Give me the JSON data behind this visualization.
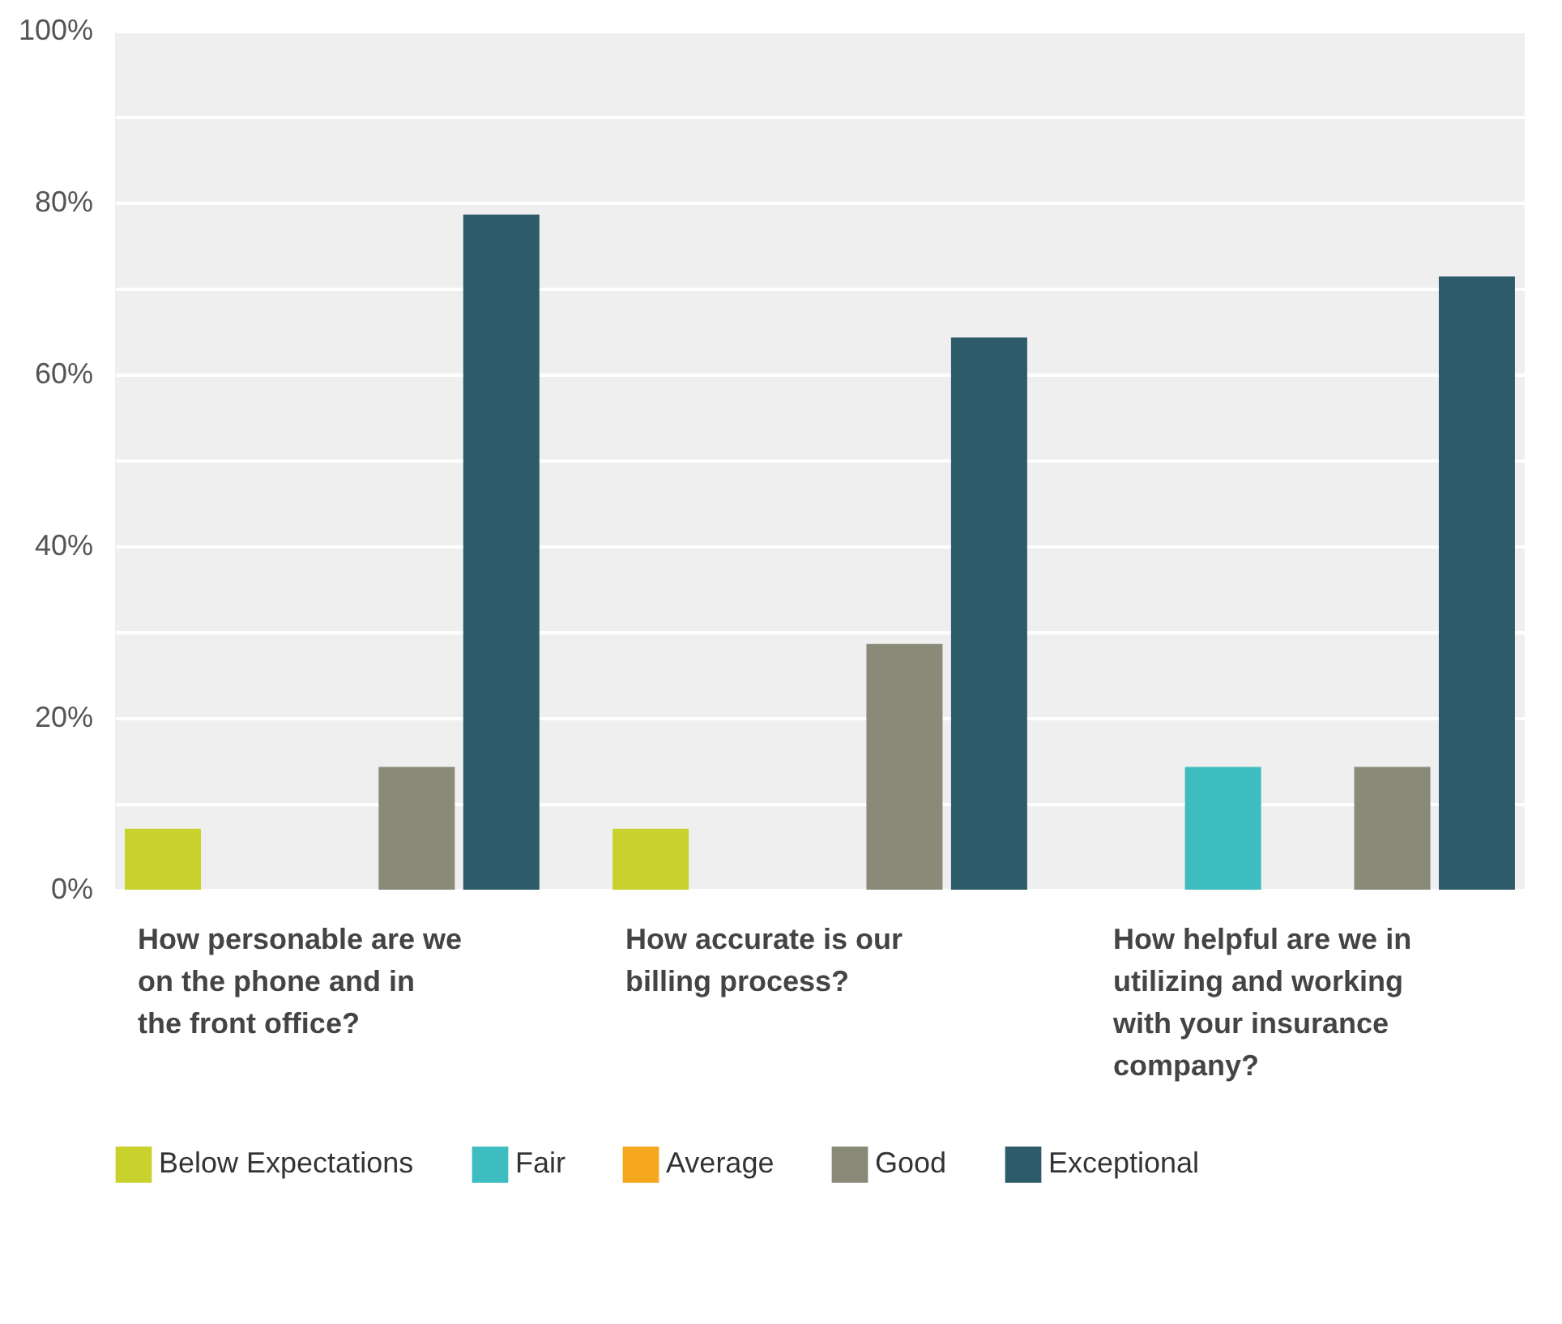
{
  "chart_data": {
    "type": "bar",
    "categories": [
      "How personable are we on the phone and in the front office?",
      "How accurate is our billing process?",
      "How helpful are we in utilizing and working with your insurance company?"
    ],
    "series": [
      {
        "name": "Below Expectations",
        "color": "#c9d22c",
        "values": [
          7.1,
          7.1,
          0
        ]
      },
      {
        "name": "Fair",
        "color": "#3dbdbf",
        "values": [
          0,
          0,
          14.3
        ]
      },
      {
        "name": "Average",
        "color": "#f5a81e",
        "values": [
          0,
          0,
          0
        ]
      },
      {
        "name": "Good",
        "color": "#8a8a78",
        "values": [
          14.3,
          28.6,
          14.3
        ]
      },
      {
        "name": "Exceptional",
        "color": "#2e5b6a",
        "values": [
          78.6,
          64.3,
          71.4
        ]
      }
    ],
    "ylim": [
      0,
      100
    ],
    "yticks": [
      {
        "value": 0,
        "label": "0%"
      },
      {
        "value": 10,
        "label": null
      },
      {
        "value": 20,
        "label": "20%"
      },
      {
        "value": 30,
        "label": null
      },
      {
        "value": 40,
        "label": "40%"
      },
      {
        "value": 50,
        "label": null
      },
      {
        "value": 60,
        "label": "60%"
      },
      {
        "value": 70,
        "label": null
      },
      {
        "value": 80,
        "label": "80%"
      },
      {
        "value": 90,
        "label": null
      },
      {
        "value": 100,
        "label": "100%"
      }
    ],
    "grid": true,
    "legend": "bottom"
  }
}
